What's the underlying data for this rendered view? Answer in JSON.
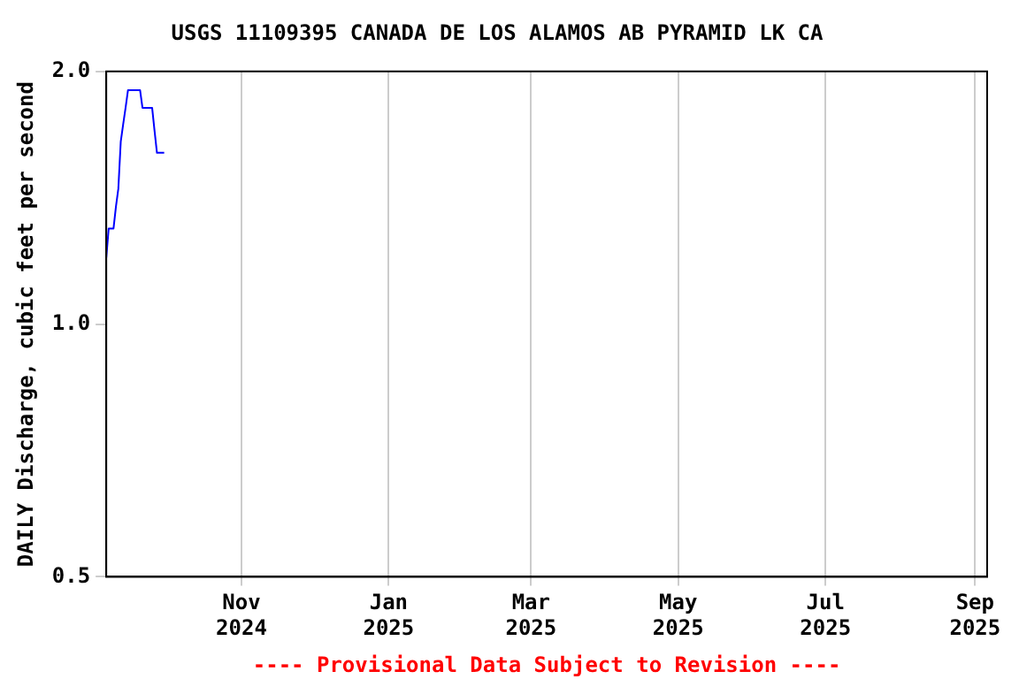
{
  "chart_data": {
    "type": "line",
    "title": "USGS 11109395 CANADA DE LOS ALAMOS AB PYRAMID LK CA",
    "ylabel": "DAILY Discharge, cubic feet per second",
    "annotations": [
      "---- Provisional Data Subject to Revision ----"
    ],
    "x": [
      "2024-09-06",
      "2024-09-07",
      "2024-09-08",
      "2024-09-09",
      "2024-09-10",
      "2024-09-11",
      "2024-09-12",
      "2024-09-13",
      "2024-09-14",
      "2024-09-15",
      "2024-09-16",
      "2024-09-17",
      "2024-09-18",
      "2024-09-19",
      "2024-09-20",
      "2024-09-21",
      "2024-09-22",
      "2024-09-23",
      "2024-09-24",
      "2024-09-25",
      "2024-09-26",
      "2024-09-27",
      "2024-09-28",
      "2024-09-29",
      "2024-09-30"
    ],
    "series": [
      {
        "color": "#0000ff",
        "values": [
          1.2,
          1.3,
          1.3,
          1.3,
          1.38,
          1.45,
          1.65,
          1.73,
          1.81,
          1.9,
          1.9,
          1.9,
          1.9,
          1.9,
          1.9,
          1.81,
          1.81,
          1.81,
          1.81,
          1.81,
          1.7,
          1.6,
          1.6,
          1.6,
          1.6
        ]
      }
    ],
    "xlim": [
      "2024-09-06",
      "2025-09-06"
    ],
    "xticks": [
      {
        "value": "2024-11-01",
        "label": "Nov 2024"
      },
      {
        "value": "2025-01-01",
        "label": "Jan 2025"
      },
      {
        "value": "2025-03-01",
        "label": "Mar 2025"
      },
      {
        "value": "2025-05-01",
        "label": "May 2025"
      },
      {
        "value": "2025-07-01",
        "label": "Jul 2025"
      },
      {
        "value": "2025-09-01",
        "label": "Sep 2025"
      }
    ],
    "log": "y",
    "ylim": [
      0.5,
      2.0
    ],
    "yticks": [
      0.5,
      {
        "value": 1.0,
        "label": "1.0"
      },
      {
        "value": 2.0,
        "label": "2.0"
      }
    ],
    "grid": "x",
    "legend": false,
    "marker": "none",
    "line_style": "solid"
  }
}
